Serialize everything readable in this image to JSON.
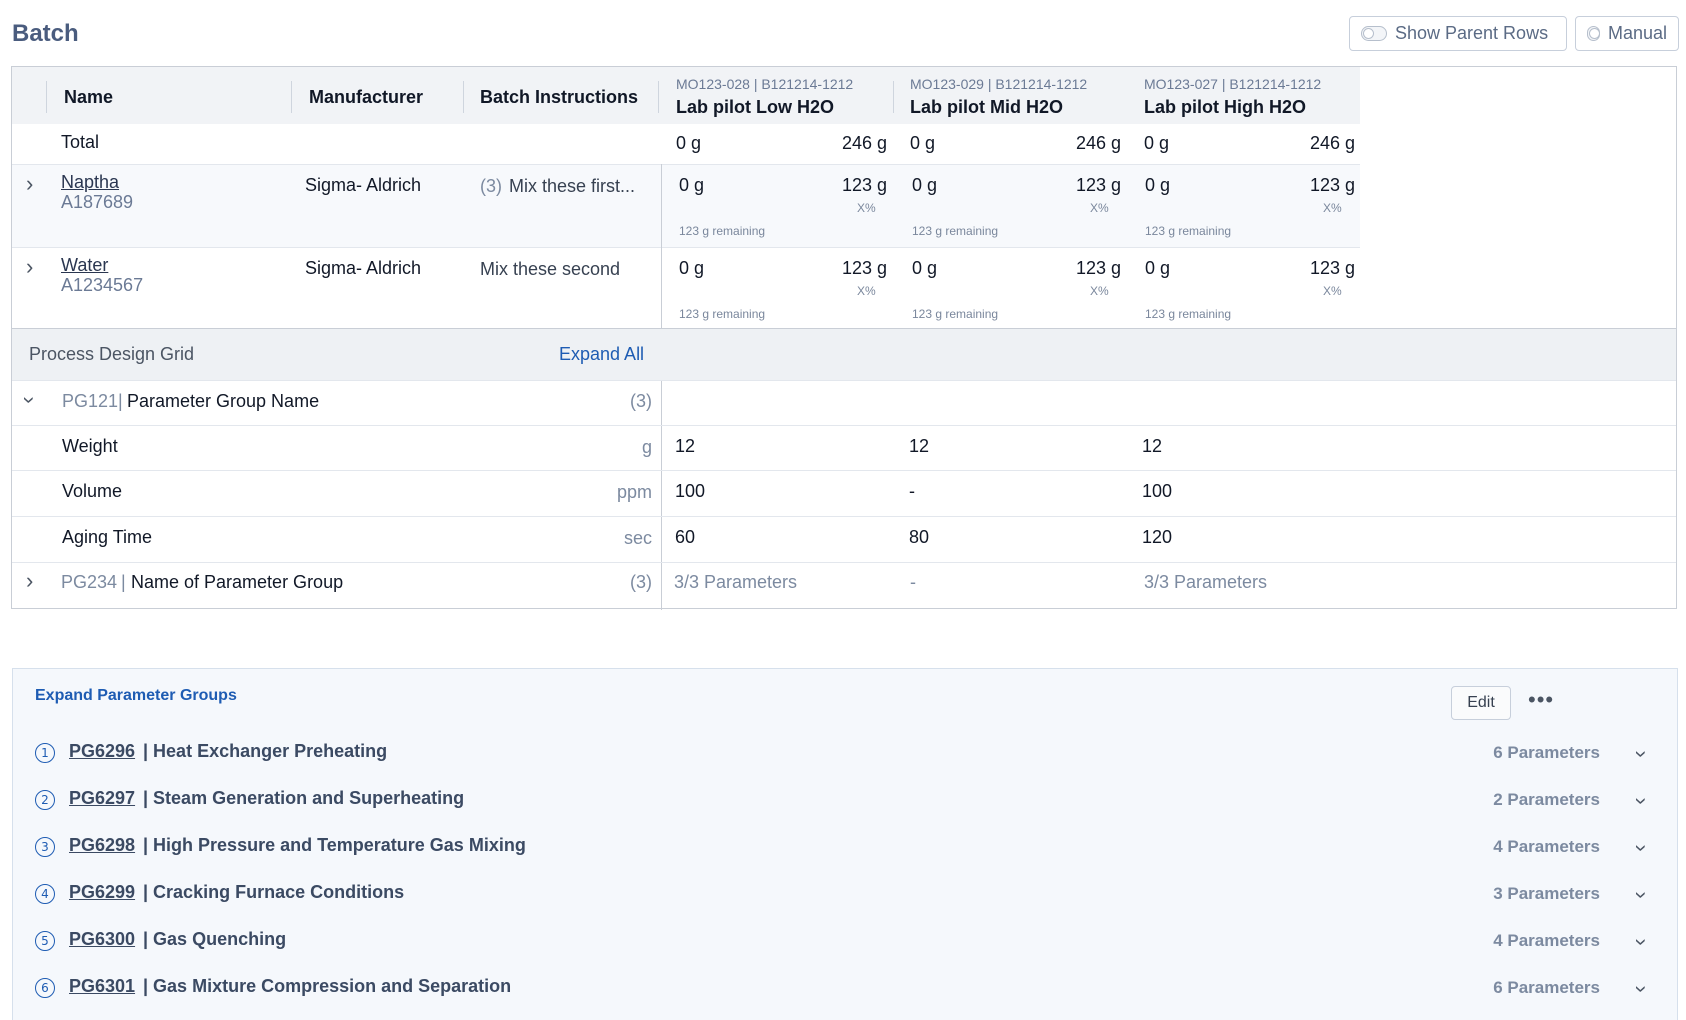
{
  "page": {
    "title": "Batch"
  },
  "toolbar": {
    "show_parent_rows": "Show Parent Rows",
    "manual": "Manual"
  },
  "table": {
    "headers": {
      "name": "Name",
      "manufacturer": "Manufacturer",
      "instructions": "Batch Instructions"
    },
    "columns": [
      {
        "code": "MO123-028 | B121214-1212",
        "name": "Lab pilot Low H2O"
      },
      {
        "code": "MO123-029 | B121214-1212",
        "name": "Lab pilot Mid H2O"
      },
      {
        "code": "MO123-027 | B121214-1212",
        "name": "Lab pilot High H2O"
      }
    ],
    "total": {
      "label": "Total",
      "values": [
        {
          "a": "0 g",
          "b": "246 g"
        },
        {
          "a": "0 g",
          "b": "246 g"
        },
        {
          "a": "0 g",
          "b": "246 g"
        }
      ]
    },
    "rows": [
      {
        "name": "Naptha",
        "code": "A187689",
        "manufacturer": "Sigma- Aldrich",
        "instr_count": "(3)",
        "instructions": "Mix these first...",
        "cells": [
          {
            "a": "0 g",
            "b": "123 g",
            "pct": "X%",
            "remaining": "123 g remaining"
          },
          {
            "a": "0 g",
            "b": "123 g",
            "pct": "X%",
            "remaining": "123 g remaining"
          },
          {
            "a": "0 g",
            "b": "123 g",
            "pct": "X%",
            "remaining": "123 g remaining"
          }
        ]
      },
      {
        "name": "Water",
        "code": "A1234567",
        "manufacturer": "Sigma- Aldrich",
        "instr_count": "",
        "instructions": "Mix these second",
        "cells": [
          {
            "a": "0 g",
            "b": "123 g",
            "pct": "X%",
            "remaining": "123 g remaining"
          },
          {
            "a": "0 g",
            "b": "123 g",
            "pct": "X%",
            "remaining": "123 g remaining"
          },
          {
            "a": "0 g",
            "b": "123 g",
            "pct": "X%",
            "remaining": "123 g remaining"
          }
        ]
      }
    ]
  },
  "pdg": {
    "title": "Process Design Grid",
    "expand_all": "Expand All",
    "group1": {
      "code": "PG121",
      "name": "Parameter Group Name",
      "count": "(3)"
    },
    "params": [
      {
        "name": "Weight",
        "unit": "g",
        "values": [
          "12",
          "12",
          "12"
        ]
      },
      {
        "name": "Volume",
        "unit": "ppm",
        "values": [
          "100",
          "-",
          "100"
        ]
      },
      {
        "name": "Aging Time",
        "unit": "sec",
        "values": [
          "60",
          "80",
          "120"
        ]
      }
    ],
    "group2": {
      "code": "PG234",
      "name": "Name of Parameter Group",
      "count": "(3)",
      "values": [
        "3/3 Parameters",
        "-",
        "3/3 Parameters"
      ]
    }
  },
  "panel": {
    "title": "Expand Parameter Groups",
    "edit": "Edit",
    "groups": [
      {
        "num": "1",
        "code": "PG6296",
        "name": "Heat Exchanger Preheating",
        "count": "6 Parameters"
      },
      {
        "num": "2",
        "code": "PG6297",
        "name": "Steam Generation and Superheating",
        "count": "2 Parameters"
      },
      {
        "num": "3",
        "code": "PG6298",
        "name": "High Pressure and Temperature Gas Mixing",
        "count": "4 Parameters"
      },
      {
        "num": "4",
        "code": "PG6299",
        "name": "Cracking Furnace Conditions",
        "count": "3 Parameters"
      },
      {
        "num": "5",
        "code": "PG6300",
        "name": "Gas Quenching",
        "count": "4 Parameters"
      },
      {
        "num": "6",
        "code": "PG6301",
        "name": "Gas Mixture Compression and Separation",
        "count": "6 Parameters"
      }
    ]
  }
}
